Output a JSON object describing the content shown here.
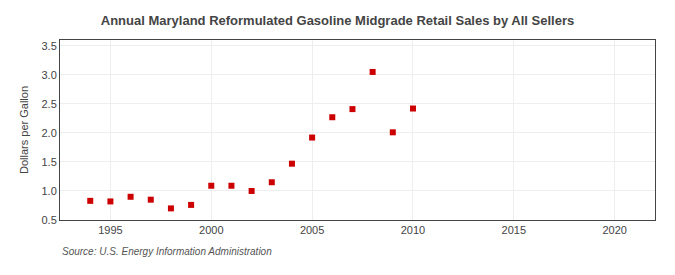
{
  "chart_data": {
    "type": "scatter",
    "title": "Annual Maryland Reformulated Gasoline Midgrade Retail Sales by All Sellers",
    "ylabel": "Dollars per Gallon",
    "annotation": "Source: U.S. Energy Information Administration",
    "x": [
      1994,
      1995,
      1996,
      1997,
      1998,
      1999,
      2000,
      2001,
      2002,
      2003,
      2004,
      2005,
      2006,
      2007,
      2008,
      2009,
      2010
    ],
    "values": [
      0.83,
      0.82,
      0.9,
      0.85,
      0.7,
      0.76,
      1.09,
      1.09,
      1.0,
      1.15,
      1.47,
      1.92,
      2.27,
      2.41,
      3.05,
      2.01,
      2.42
    ],
    "color": "#cc0000",
    "marker": "square",
    "xlim": [
      1992.5,
      2022
    ],
    "ylim": [
      0.5,
      3.6
    ],
    "xticks": [
      1995,
      2000,
      2005,
      2010,
      2015,
      2020
    ],
    "yticks": [
      0.5,
      {
        "value": 1.0,
        "label": "1.0"
      },
      1.5,
      {
        "value": 2.0,
        "label": "2.0"
      },
      2.5,
      {
        "value": 3.0,
        "label": "3.0"
      },
      3.5
    ],
    "grid": true
  }
}
